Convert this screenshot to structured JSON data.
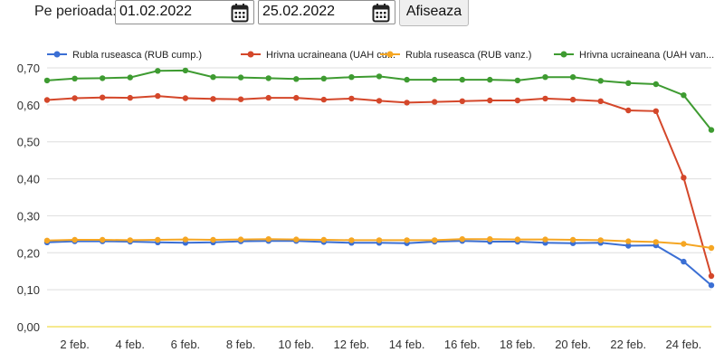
{
  "toolbar": {
    "period_label": "Pe perioada:",
    "start_date": "01.02.2022",
    "end_date": "25.02.2022",
    "show_label": "Afiseaza",
    "calendar_icon": "calendar-icon"
  },
  "chart_data": {
    "type": "line",
    "title": "",
    "xlabel": "",
    "ylabel": "",
    "x_ticks": [
      "2 feb.",
      "4 feb.",
      "6 feb.",
      "8 feb.",
      "10 feb.",
      "12 feb.",
      "14 feb.",
      "16 feb.",
      "18 feb.",
      "20 feb.",
      "22 feb.",
      "24 feb."
    ],
    "y_ticks": [
      "0,00",
      "0,10",
      "0,20",
      "0,30",
      "0,40",
      "0,50",
      "0,60",
      "0,70"
    ],
    "ylim": [
      0,
      0.7
    ],
    "grid": true,
    "legend_position": "top",
    "x": [
      "1 feb.",
      "2 feb.",
      "3 feb.",
      "4 feb.",
      "5 feb.",
      "6 feb.",
      "7 feb.",
      "8 feb.",
      "9 feb.",
      "10 feb.",
      "11 feb.",
      "12 feb.",
      "13 feb.",
      "14 feb.",
      "15 feb.",
      "16 feb.",
      "17 feb.",
      "18 feb.",
      "19 feb.",
      "20 feb.",
      "21 feb.",
      "22 feb.",
      "23 feb.",
      "24 feb.",
      "25 feb."
    ],
    "series": [
      {
        "name": "Rubla ruseasca (RUB cump.)",
        "color": "#3b6fd4",
        "values": [
          0.228,
          0.231,
          0.231,
          0.23,
          0.228,
          0.227,
          0.228,
          0.231,
          0.232,
          0.232,
          0.229,
          0.227,
          0.227,
          0.226,
          0.23,
          0.232,
          0.23,
          0.23,
          0.227,
          0.226,
          0.227,
          0.219,
          0.22,
          0.176,
          0.112
        ]
      },
      {
        "name": "Hrivna ucraineana (UAH cu...",
        "color": "#d4472a",
        "values": [
          0.613,
          0.618,
          0.62,
          0.619,
          0.624,
          0.618,
          0.616,
          0.615,
          0.619,
          0.619,
          0.614,
          0.617,
          0.611,
          0.606,
          0.608,
          0.61,
          0.612,
          0.612,
          0.617,
          0.614,
          0.61,
          0.585,
          0.583,
          0.403,
          0.137
        ]
      },
      {
        "name": "Rubla ruseasca (RUB vanz.)",
        "color": "#f5a623",
        "values": [
          0.233,
          0.235,
          0.235,
          0.234,
          0.235,
          0.236,
          0.235,
          0.236,
          0.237,
          0.236,
          0.235,
          0.234,
          0.234,
          0.234,
          0.234,
          0.237,
          0.237,
          0.236,
          0.236,
          0.235,
          0.234,
          0.231,
          0.229,
          0.224,
          0.213
        ]
      },
      {
        "name": "Hrivna ucraineana (UAH van...",
        "color": "#3e9b31",
        "values": [
          0.666,
          0.671,
          0.672,
          0.674,
          0.692,
          0.693,
          0.675,
          0.674,
          0.672,
          0.67,
          0.671,
          0.675,
          0.677,
          0.668,
          0.668,
          0.668,
          0.668,
          0.666,
          0.675,
          0.675,
          0.665,
          0.659,
          0.656,
          0.626,
          0.532
        ]
      }
    ]
  }
}
